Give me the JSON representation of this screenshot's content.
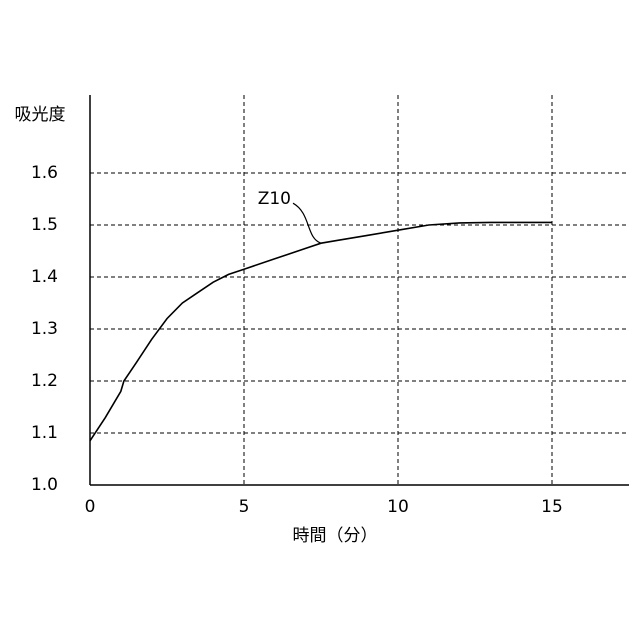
{
  "chart_data": {
    "type": "line",
    "y_label": "吸光度",
    "x_label": "時間（分）",
    "x": [
      0,
      0.5,
      1,
      1.1,
      1.5,
      2,
      2.5,
      3,
      3.5,
      4,
      4.5,
      5,
      6,
      7,
      7.5,
      8,
      9,
      10,
      11,
      12,
      13,
      14,
      15
    ],
    "series": [
      {
        "name": "Z10",
        "color": "#000000",
        "values": [
          1.085,
          1.13,
          1.18,
          1.2,
          1.235,
          1.28,
          1.32,
          1.35,
          1.37,
          1.39,
          1.405,
          1.415,
          1.435,
          1.455,
          1.465,
          1.47,
          1.48,
          1.49,
          1.5,
          1.504,
          1.505,
          1.505,
          1.505
        ]
      }
    ],
    "xlim": [
      0,
      17.5
    ],
    "xticks": [
      0,
      5,
      10,
      15
    ],
    "ylim": [
      1.0,
      1.75
    ],
    "yticks": [
      {
        "value": 1.0,
        "label": "1.0"
      },
      1.1,
      1.2,
      1.3,
      1.4,
      1.5,
      1.6
    ],
    "grid": true
  }
}
